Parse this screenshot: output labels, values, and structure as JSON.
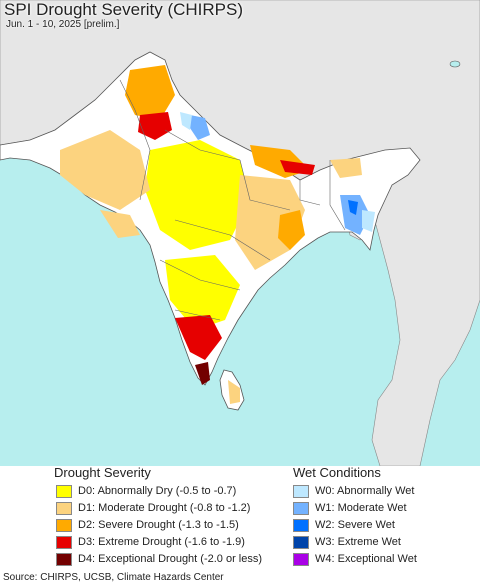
{
  "header": {
    "title": "SPI Drought Severity (CHIRPS)",
    "subtitle": "Jun. 1 - 10, 2025 [prelim.]"
  },
  "legend": {
    "drought": {
      "title": "Drought Severity",
      "items": [
        {
          "label": "D0: Abnormally Dry (-0.5 to -0.7)",
          "color": "#ffff00"
        },
        {
          "label": "D1: Moderate Drought (-0.8 to -1.2)",
          "color": "#fcd37f"
        },
        {
          "label": "D2: Severe Drought (-1.3 to -1.5)",
          "color": "#ffaa00"
        },
        {
          "label": "D3: Extreme Drought (-1.6 to -1.9)",
          "color": "#e60000"
        },
        {
          "label": "D4: Exceptional Drought (-2.0 or less)",
          "color": "#730000"
        }
      ]
    },
    "wet": {
      "title": "Wet Conditions",
      "items": [
        {
          "label": "W0: Abnormally Wet",
          "color": "#bee8ff"
        },
        {
          "label": "W1: Moderate Wet",
          "color": "#73b2ff"
        },
        {
          "label": "W2: Severe Wet",
          "color": "#0070ff"
        },
        {
          "label": "W3: Extreme Wet",
          "color": "#0044aa"
        },
        {
          "label": "W4: Exceptional Wet",
          "color": "#a900e6"
        }
      ]
    }
  },
  "footer": {
    "source": "Source: CHIRPS, UCSB, Climate Hazards Center"
  },
  "colors": {
    "ocean": "#b7eeee",
    "land_nodata": "#ffffff",
    "outside_region": "#e6e6e6",
    "border": "#555555"
  }
}
